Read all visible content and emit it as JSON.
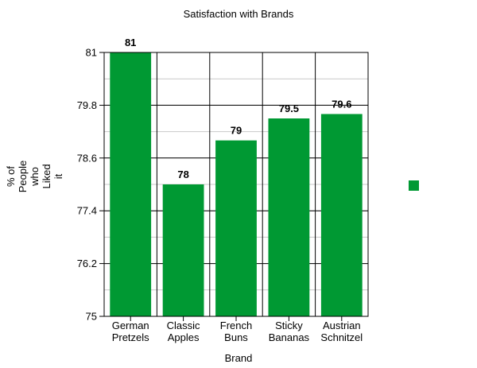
{
  "chart_data": {
    "type": "bar",
    "title": "Satisfaction with Brands",
    "xlabel": "Brand",
    "ylabel": [
      "% of",
      "People",
      "who",
      "Liked",
      "it"
    ],
    "categories": [
      [
        "German",
        "Pretzels"
      ],
      [
        "Classic",
        "Apples"
      ],
      [
        "French",
        "Buns"
      ],
      [
        "Sticky",
        "Bananas"
      ],
      [
        "Austrian",
        "Schnitzel"
      ]
    ],
    "values": [
      81,
      78,
      79,
      79.5,
      79.6
    ],
    "data_labels": [
      "81",
      "78",
      "79",
      "79.5",
      "79.6"
    ],
    "ylim": [
      75,
      81
    ],
    "yticks": [
      "75",
      "76.2",
      "77.4",
      "78.6",
      "79.8",
      "81"
    ],
    "minor_grid_step": 0.6,
    "grid": true,
    "legend": {
      "placement": "right",
      "entries": [
        {
          "name": "",
          "color": "#009933"
        }
      ]
    },
    "bar_color": "#009933"
  }
}
